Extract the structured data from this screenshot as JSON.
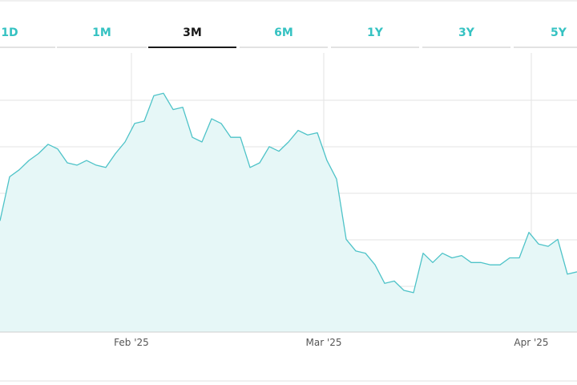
{
  "tabs": [
    {
      "label": "1D",
      "active": false
    },
    {
      "label": "1M",
      "active": false
    },
    {
      "label": "3M",
      "active": true
    },
    {
      "label": "6M",
      "active": false
    },
    {
      "label": "1Y",
      "active": false
    },
    {
      "label": "3Y",
      "active": false
    },
    {
      "label": "5Y",
      "active": false
    }
  ],
  "colors": {
    "line": "#4ec3c8",
    "fill": "#e6f7f7",
    "grid": "#e3e3e3",
    "tab_accent": "#35c2c2",
    "tab_active": "#1a1a1a"
  },
  "chart_data": {
    "type": "area",
    "x_tick_labels": [
      "Feb '25",
      "Mar '25",
      "Apr '25"
    ],
    "grid": true,
    "y_range": [
      0,
      100
    ],
    "series": [
      {
        "values": [
          48,
          67,
          70,
          74,
          77,
          81,
          79,
          73,
          72,
          74,
          72,
          71,
          77,
          82,
          90,
          91,
          102,
          103,
          96,
          97,
          84,
          82,
          92,
          90,
          84,
          84,
          71,
          73,
          80,
          78,
          82,
          87,
          85,
          86,
          74,
          66,
          40,
          35,
          34,
          29,
          21,
          22,
          18,
          17,
          34,
          30,
          34,
          32,
          33,
          30,
          30,
          29,
          29,
          32,
          32,
          43,
          38,
          37,
          40,
          25,
          26
        ]
      }
    ]
  }
}
